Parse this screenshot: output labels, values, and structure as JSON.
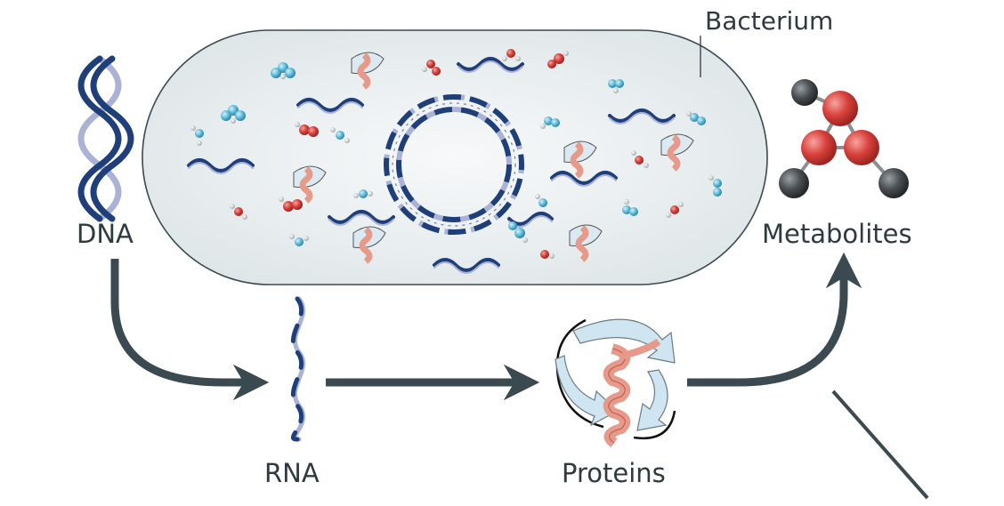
{
  "labels": {
    "bacterium": "Bacterium",
    "dna": "DNA",
    "rna": "RNA",
    "proteins": "Proteins",
    "metabolites": "Metabolites"
  },
  "colors": {
    "cell_fill": "#e6eced",
    "cell_stroke": "#3a4a50",
    "arrow": "#3b4a50",
    "strand_dark": "#1f3f7a",
    "strand_light": "#aab3d6",
    "helix": "#e89a8a",
    "sheet": "#cfe6f2",
    "atom_red": "#d8413c",
    "atom_grey": "#4a4f53",
    "atom_blue": "#5bb8d8"
  }
}
